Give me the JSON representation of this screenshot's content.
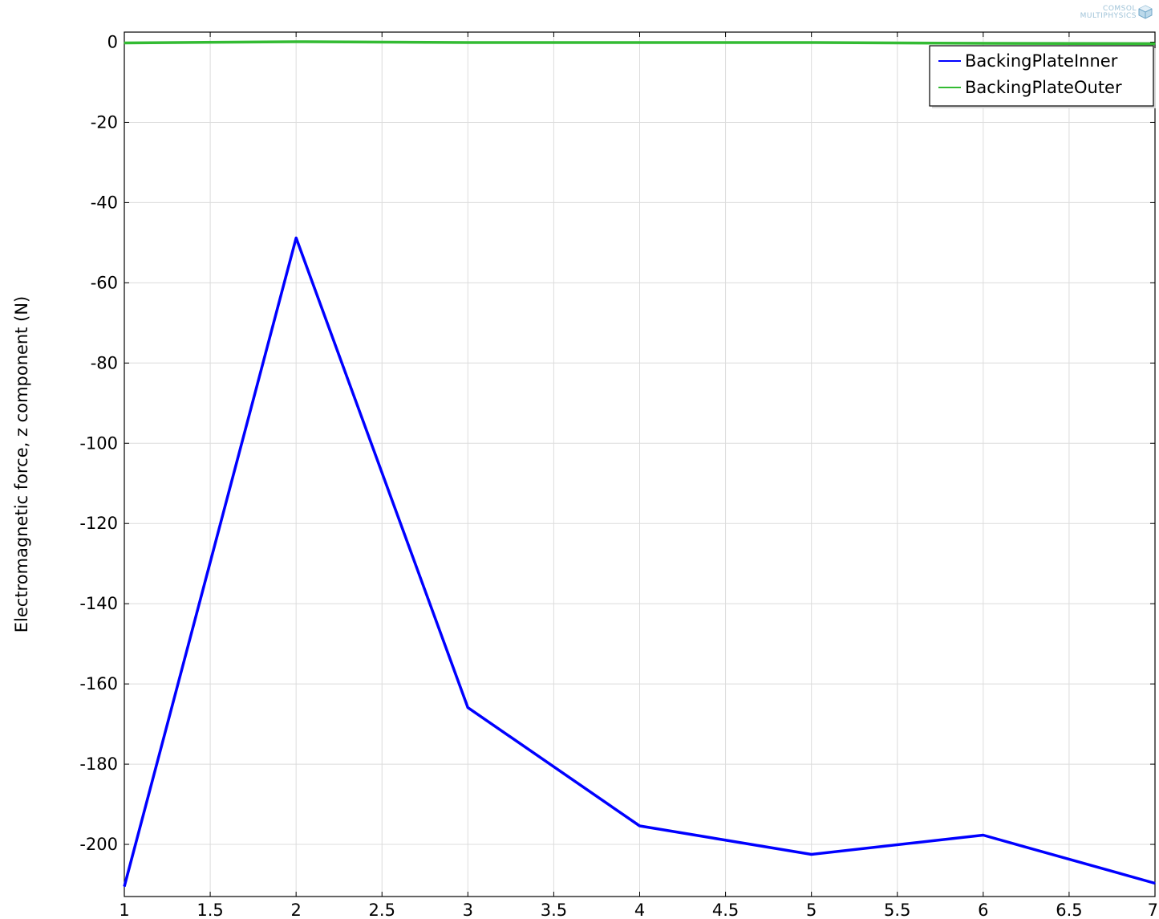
{
  "branding": {
    "line1": "COMSOL",
    "line2": "MULTIPHYSICS"
  },
  "chart_data": {
    "type": "line",
    "title": "",
    "xlabel": "",
    "ylabel": "Electromagnetic force, z component (N)",
    "xlim": [
      1,
      7
    ],
    "ylim": [
      -213,
      2.5
    ],
    "xticks": [
      1,
      1.5,
      2,
      2.5,
      3,
      3.5,
      4,
      4.5,
      5,
      5.5,
      6,
      6.5,
      7
    ],
    "yticks": [
      0,
      -20,
      -40,
      -60,
      -80,
      -100,
      -120,
      -140,
      -160,
      -180,
      -200
    ],
    "grid": true,
    "legend_position": "top-right",
    "x": [
      1,
      2,
      3,
      4,
      5,
      6,
      7
    ],
    "series": [
      {
        "name": "BackingPlateInner",
        "color": "#0000ff",
        "values": [
          -210.5,
          -48.8,
          -165.9,
          -195.4,
          -202.5,
          -197.7,
          -209.7
        ]
      },
      {
        "name": "BackingPlateOuter",
        "color": "#33bb33",
        "values": [
          -0.2,
          0.1,
          -0.1,
          -0.1,
          -0.1,
          -0.3,
          -0.4
        ]
      }
    ]
  }
}
